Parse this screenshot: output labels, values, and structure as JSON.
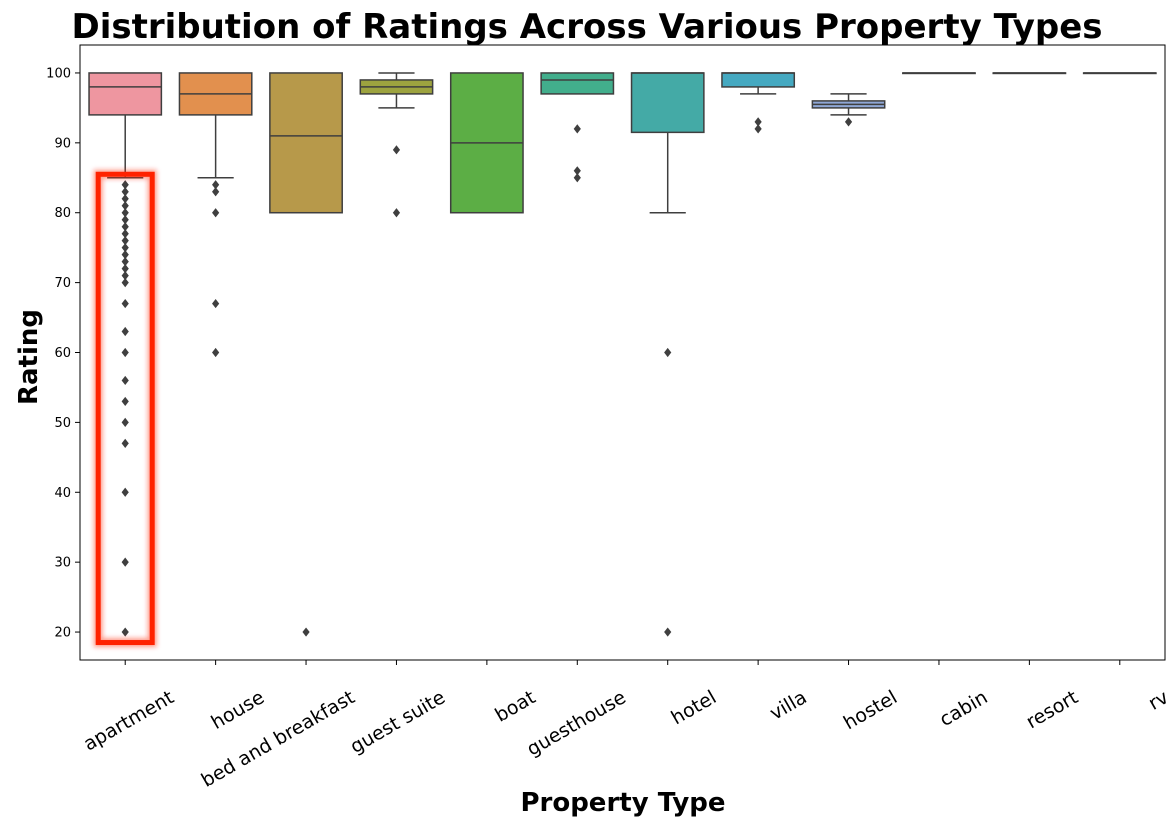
{
  "chart_data": {
    "type": "box",
    "title": "Distribution of Ratings Across Various Property Types",
    "xlabel": "Property Type",
    "ylabel": "Rating",
    "ylim": [
      16,
      104
    ],
    "yticks": [
      20,
      30,
      40,
      50,
      60,
      70,
      80,
      90,
      100
    ],
    "grid": false,
    "categories": [
      "apartment",
      "house",
      "bed and breakfast",
      "guest suite",
      "boat",
      "guesthouse",
      "hotel",
      "villa",
      "hostel",
      "cabin",
      "resort",
      "rv"
    ],
    "colors": [
      "#ee96a0",
      "#e2904e",
      "#b7994a",
      "#9da33f",
      "#5cae45",
      "#42ae8c",
      "#44aaa6",
      "#45a9c1",
      "#8fa7d6",
      "#ab9bd9",
      "#d88fd6",
      "#ea8fbe"
    ],
    "boxes": [
      {
        "category": "apartment",
        "whisker_low": 85,
        "q1": 94,
        "median": 98,
        "q3": 100,
        "whisker_high": 100,
        "outliers": [
          84,
          83,
          82,
          81,
          80,
          79,
          78,
          77,
          76,
          75,
          74,
          73,
          72,
          71,
          70,
          67,
          63,
          60,
          56,
          53,
          50,
          47,
          40,
          30,
          20
        ]
      },
      {
        "category": "house",
        "whisker_low": 85,
        "q1": 94,
        "median": 97,
        "q3": 100,
        "whisker_high": 100,
        "outliers": [
          84,
          83,
          80,
          67,
          60
        ]
      },
      {
        "category": "bed and breakfast",
        "whisker_low": 80,
        "q1": 80,
        "median": 91,
        "q3": 100,
        "whisker_high": 100,
        "outliers": [
          20
        ]
      },
      {
        "category": "guest suite",
        "whisker_low": 95,
        "q1": 97,
        "median": 98,
        "q3": 99,
        "whisker_high": 100,
        "outliers": [
          89,
          80
        ]
      },
      {
        "category": "boat",
        "whisker_low": 80,
        "q1": 80,
        "median": 90,
        "q3": 100,
        "whisker_high": 100,
        "outliers": []
      },
      {
        "category": "guesthouse",
        "whisker_low": 97,
        "q1": 97,
        "median": 99,
        "q3": 100,
        "whisker_high": 100,
        "outliers": [
          92,
          86,
          85
        ]
      },
      {
        "category": "hotel",
        "whisker_low": 80,
        "q1": 91.5,
        "median": 100,
        "q3": 100,
        "whisker_high": 100,
        "outliers": [
          60,
          20
        ]
      },
      {
        "category": "villa",
        "whisker_low": 97,
        "q1": 98,
        "median": 100,
        "q3": 100,
        "whisker_high": 100,
        "outliers": [
          93,
          92
        ]
      },
      {
        "category": "hostel",
        "whisker_low": 94,
        "q1": 95,
        "median": 95.5,
        "q3": 96,
        "whisker_high": 97,
        "outliers": [
          93
        ]
      },
      {
        "category": "cabin",
        "whisker_low": 100,
        "q1": 100,
        "median": 100,
        "q3": 100,
        "whisker_high": 100,
        "outliers": []
      },
      {
        "category": "resort",
        "whisker_low": 100,
        "q1": 100,
        "median": 100,
        "q3": 100,
        "whisker_high": 100,
        "outliers": []
      },
      {
        "category": "rv",
        "whisker_low": 100,
        "q1": 100,
        "median": 100,
        "q3": 100,
        "whisker_high": 100,
        "outliers": []
      }
    ],
    "annotation": {
      "type": "highlight-box",
      "target": "apartment",
      "range": [
        18.5,
        85.5
      ],
      "color": "#ff2200"
    }
  }
}
